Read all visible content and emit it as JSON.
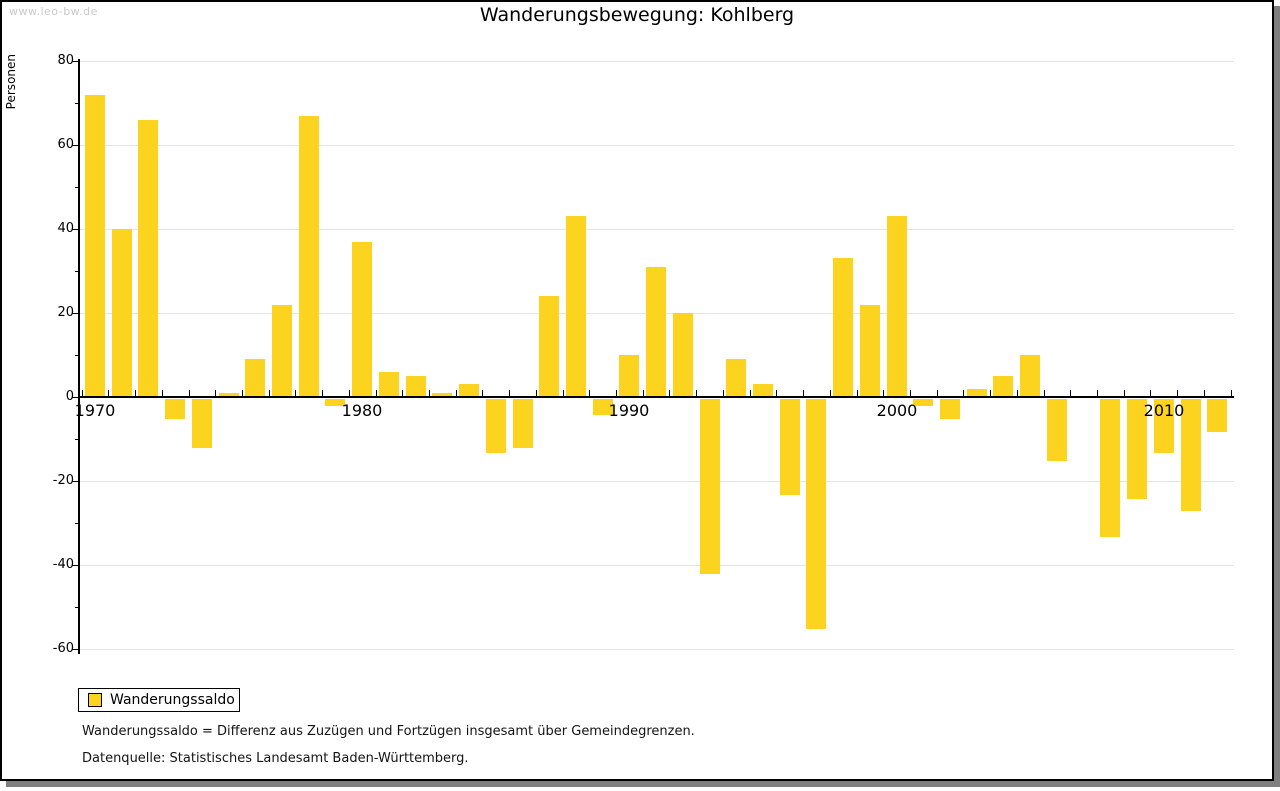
{
  "watermark": "www.leo-bw.de",
  "title": "Wanderungsbewegung: Kohlberg",
  "legend": {
    "label": "Wanderungssaldo"
  },
  "footnotes": [
    "Wanderungssaldo = Differenz aus Zuzügen und Fortzügen insgesamt über Gemeindegrenzen.",
    "Datenquelle: Statistisches Landesamt Baden-Württemberg."
  ],
  "chart_data": {
    "type": "bar",
    "title": "Wanderungsbewegung: Kohlberg",
    "ylabel": "Personen",
    "series_name": "Wanderungssaldo",
    "categories": [
      1970,
      1971,
      1972,
      1973,
      1974,
      1975,
      1976,
      1977,
      1978,
      1979,
      1980,
      1981,
      1982,
      1983,
      1984,
      1985,
      1986,
      1987,
      1988,
      1989,
      1990,
      1991,
      1992,
      1993,
      1994,
      1995,
      1996,
      1997,
      1998,
      1999,
      2000,
      2001,
      2002,
      2003,
      2004,
      2005,
      2006,
      2007,
      2008,
      2009,
      2010,
      2011,
      2012
    ],
    "values": [
      72,
      40,
      66,
      -5,
      -12,
      1,
      9,
      22,
      67,
      -2,
      37,
      6,
      5,
      1,
      3,
      -13,
      -12,
      24,
      43,
      -4,
      10,
      31,
      20,
      -42,
      9,
      3,
      -23,
      -55,
      33,
      22,
      43,
      -2,
      -5,
      2,
      5,
      10,
      -15,
      0,
      -33,
      -24,
      -13,
      -27,
      -8
    ],
    "ylim": [
      -60,
      80
    ],
    "ytick_interval": 20,
    "ytick_minor_interval": 10,
    "xtick_labels": [
      "1970",
      "1980",
      "1990",
      "2000",
      "2010"
    ],
    "grid": true,
    "legend_position": "bottom-left",
    "bar_color": "#fcd41f",
    "gridline_color": "#e4e4e4"
  }
}
